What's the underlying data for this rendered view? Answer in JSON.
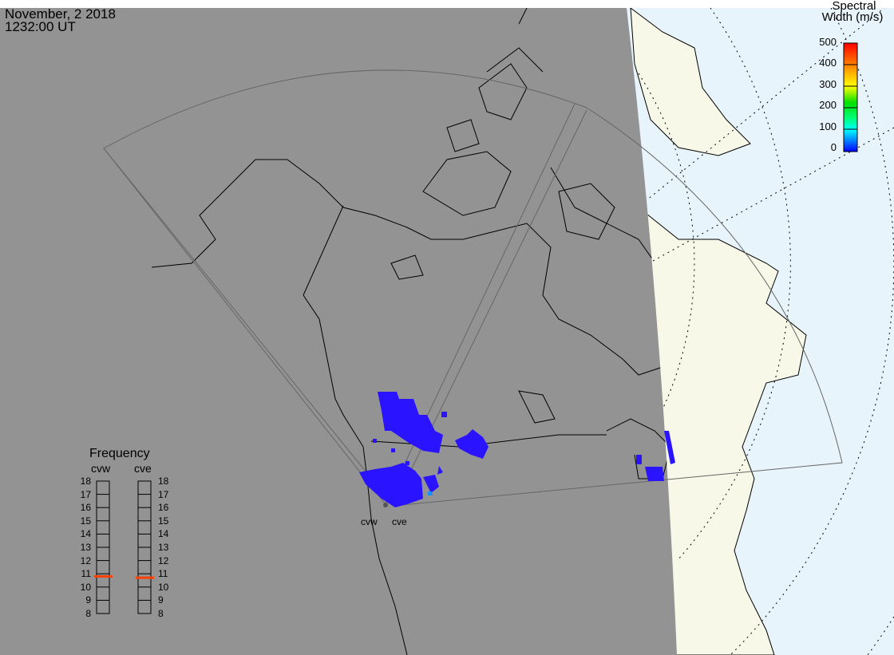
{
  "header": {
    "date": "November, 2 2018",
    "time": "1232:00 UT"
  },
  "legend": {
    "title_line1": "Spectral",
    "title_line2": "Width (m/s)",
    "ticks": [
      "500",
      "400",
      "300",
      "200",
      "100",
      "0"
    ],
    "range": [
      0,
      500
    ],
    "colormap": [
      "#0000ff",
      "#00a0ff",
      "#00ffff",
      "#00ff80",
      "#00e000",
      "#a0e000",
      "#ffff00",
      "#ffa000",
      "#ff4000",
      "#ff0000"
    ]
  },
  "frequency_panel": {
    "title": "Frequency",
    "unit_range": [
      8,
      18
    ],
    "scale_labels": [
      "18",
      "17",
      "16",
      "15",
      "14",
      "13",
      "12",
      "11",
      "10",
      "9",
      "8"
    ],
    "radars": [
      {
        "name": "cvw",
        "frequency_mhz": 10.8
      },
      {
        "name": "cve",
        "frequency_mhz": 10.7
      }
    ],
    "marker_color": "#ff4000"
  },
  "sites": [
    {
      "name": "cvw"
    },
    {
      "name": "cve"
    }
  ],
  "colors": {
    "night": "#939393",
    "ocean_day": "#e8f4fc",
    "land_day": "#f8f8e8",
    "scatter": "#2a14ff"
  }
}
